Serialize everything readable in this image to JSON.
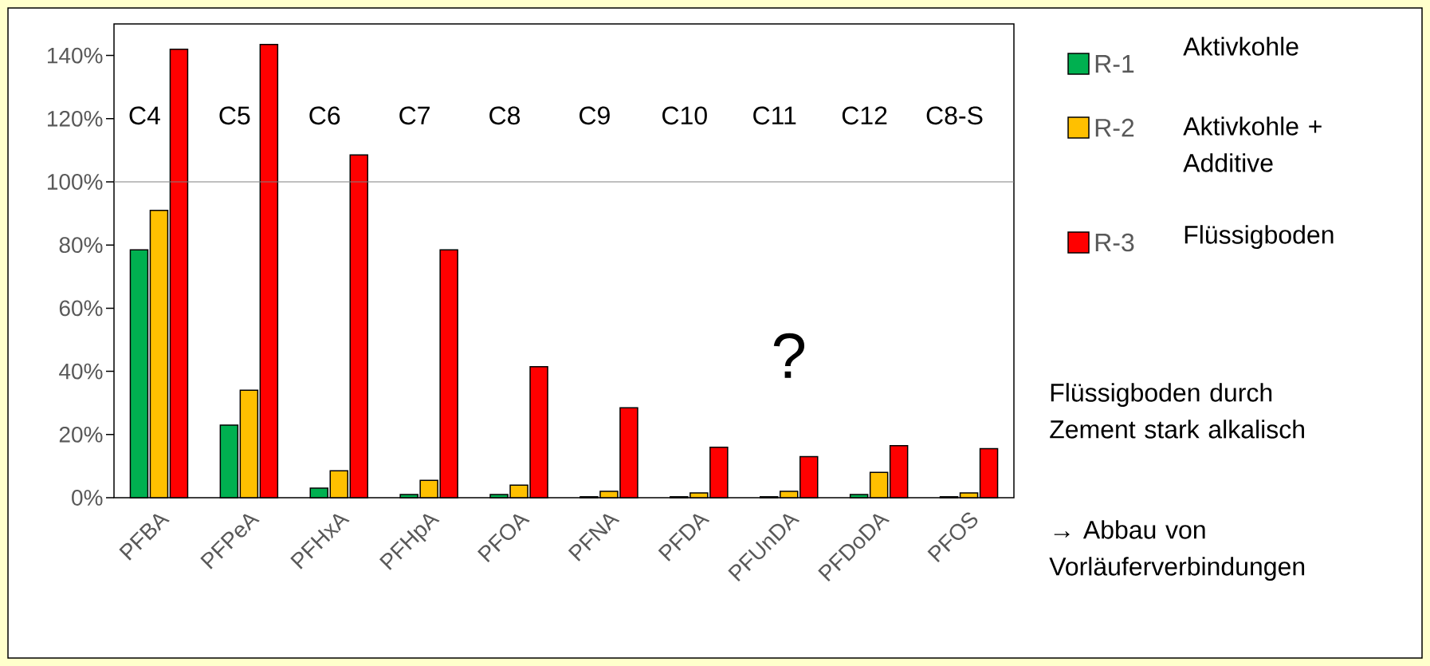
{
  "chart_data": {
    "type": "bar",
    "categories": [
      "PFBA",
      "PFPeA",
      "PFHxA",
      "PFHpA",
      "PFOA",
      "PFNA",
      "PFDA",
      "PFUnDA",
      "PFDoDA",
      "PFOS"
    ],
    "series": [
      {
        "name": "R-1",
        "color": "#00b050",
        "values": [
          78.5,
          23,
          3,
          1,
          1,
          0.3,
          0.3,
          0.3,
          1,
          0.3
        ]
      },
      {
        "name": "R-2",
        "color": "#ffc000",
        "values": [
          91,
          34,
          8.5,
          5.5,
          4,
          2,
          1.5,
          2,
          8,
          1.5
        ]
      },
      {
        "name": "R-3",
        "color": "#ff0000",
        "values": [
          142,
          143.5,
          108.5,
          78.5,
          41.5,
          28.5,
          16,
          13,
          16.5,
          15.5
        ]
      }
    ],
    "ylim": [
      0,
      150
    ],
    "yticks": [
      {
        "value": 0,
        "label": "0%"
      },
      {
        "value": 20,
        "label": "20%"
      },
      {
        "value": 40,
        "label": "40%"
      },
      {
        "value": 60,
        "label": "60%"
      },
      {
        "value": 80,
        "label": "80%"
      },
      {
        "value": 100,
        "label": "100%"
      },
      {
        "value": 120,
        "label": "120%"
      },
      {
        "value": 140,
        "label": "140%"
      }
    ],
    "ref_lines": [
      {
        "axis": "y",
        "value": 100,
        "color": "#808080"
      }
    ],
    "annotations": [
      "C4",
      "C5",
      "C6",
      "C7",
      "C8",
      "C9",
      "C10",
      "C11",
      "C12",
      "C8-S",
      "?",
      "Aktivkohle",
      "Aktivkohle + Additive",
      "Flüssigboden",
      "Flüssigboden durch Zement stark alkalisch",
      "→ Abbau von Vorläuferverbindungen"
    ],
    "legend": "right",
    "grid": false
  }
}
